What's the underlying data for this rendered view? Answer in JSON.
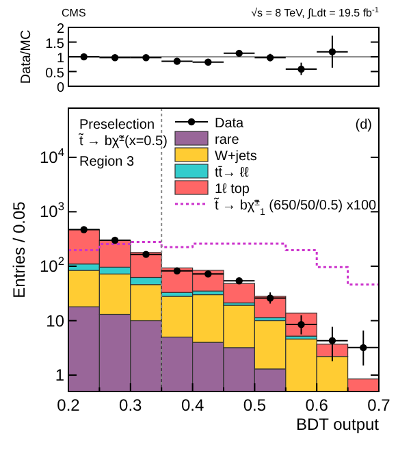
{
  "chart_data": [
    {
      "type": "scatter",
      "ylabel": "Data/MC",
      "annotations": [
        "CMS",
        "√s = 8 TeV, ∫Ldt = 19.5 fb$^{-1}$"
      ],
      "x": [
        0.225,
        0.275,
        0.325,
        0.375,
        0.425,
        0.475,
        0.525,
        0.575,
        0.625
      ],
      "values": [
        1.0,
        0.97,
        0.97,
        0.85,
        0.82,
        1.12,
        0.97,
        0.58,
        1.17
      ],
      "errors": [
        null,
        null,
        null,
        null,
        null,
        null,
        [
          0.85,
          1.1
        ],
        [
          0.38,
          0.8
        ],
        [
          0.63,
          1.72
        ]
      ],
      "xerrors": [
        0.025,
        0.025,
        0.025,
        0.025,
        0.025,
        0.025,
        0.025,
        0.025,
        0.025
      ],
      "color": "#000000",
      "marker": "circle",
      "xlim": [
        0.2,
        0.7
      ],
      "ylim": [
        0,
        2
      ],
      "yticks": [
        0,
        0.5,
        1,
        1.5,
        2
      ],
      "tick_labels": "y",
      "ref_lines": [
        {
          "axis": "y",
          "value": 1,
          "color": "#666666",
          "line_style": "solid"
        }
      ],
      "grid": false
    },
    {
      "type": "bar",
      "stacked": true,
      "log": true,
      "xlabel": "BDT output",
      "ylabel": "Entries / 0.05",
      "legend": "top right",
      "grid": false,
      "annotations": [
        "Preselection",
        "t̃ → bχ̃$^{±}$(x=0.5)",
        "Region 3",
        "(d)"
      ],
      "x": [
        0.225,
        0.275,
        0.325,
        0.375,
        0.425,
        0.475,
        0.525,
        0.575,
        0.625,
        0.675
      ],
      "xlim": [
        0.2,
        0.7
      ],
      "xticks": [
        0.2,
        {
          "value": 0.25,
          "label": null
        },
        0.3,
        {
          "value": 0.35,
          "label": null
        },
        0.4,
        {
          "value": 0.45,
          "label": null
        },
        0.5,
        {
          "value": 0.55,
          "label": null
        },
        0.6,
        {
          "value": 0.65,
          "label": null
        },
        0.7
      ],
      "ylim": [
        0.5,
        80000
      ],
      "yticks": [
        1,
        10,
        {
          "value": 100,
          "label": "10$^{2}$"
        },
        {
          "value": 1000,
          "label": "10$^{3}$"
        },
        {
          "value": 10000,
          "label": "10$^{4}$"
        }
      ],
      "ref_lines": [
        {
          "axis": "x",
          "value": 0.35,
          "color": "#888888",
          "line_style": "dotted"
        }
      ],
      "series": [
        {
          "name": "Data",
          "type": "scatter",
          "color": "#000000",
          "marker": "circle",
          "x": [
            0.225,
            0.275,
            0.325,
            0.375,
            0.425,
            0.475,
            0.525,
            0.575,
            0.625,
            0.675
          ],
          "values": [
            470,
            300,
            165,
            82,
            72,
            54,
            26,
            8.5,
            4.3,
            3.2
          ],
          "errors": [
            null,
            null,
            null,
            null,
            null,
            null,
            [
              20.6,
              33
            ],
            [
              5.6,
              12.6
            ],
            [
              1.8,
              7.7
            ],
            [
              1.5,
              6.6
            ]
          ],
          "xerrors": [
            0.025,
            0.025,
            0.025,
            0.025,
            0.025,
            0.025,
            0.025,
            0.025,
            0.025,
            0.025
          ]
        },
        {
          "name": "rare",
          "type": "bar",
          "color": "#996699",
          "values": [
            18,
            13,
            10,
            5,
            4,
            3.2,
            1.3,
            null,
            null,
            null
          ]
        },
        {
          "name": "W+jets",
          "type": "bar",
          "color": "#ffcc33",
          "values": [
            66,
            59,
            36,
            23,
            26,
            16,
            8.7,
            4.6,
            2.2,
            null
          ]
        },
        {
          "name": "tt̄→ ℓℓ",
          "type": "bar",
          "color": "#33cccc",
          "values": [
            26,
            24,
            16,
            5,
            5,
            2,
            1.4,
            0.6,
            null,
            null
          ]
        },
        {
          "name": "1ℓ top",
          "type": "bar",
          "color": "#ff6666",
          "values": [
            363,
            201,
            117,
            60,
            49,
            27,
            16.6,
            8.6,
            1.5,
            0.85
          ]
        },
        {
          "name": "t̃ → bχ̃$^{±}$$_{1}$ (650/50/0.5) x100",
          "type": "step",
          "color": "#cc33cc",
          "line_style": "dotted",
          "x": [
            0.2,
            0.25,
            0.3,
            0.35,
            0.4,
            0.45,
            0.5,
            0.55,
            0.6,
            0.65,
            0.7
          ],
          "values": [
            197,
            255,
            280,
            225,
            260,
            260,
            260,
            197,
            96,
            46,
            46
          ]
        }
      ]
    }
  ]
}
